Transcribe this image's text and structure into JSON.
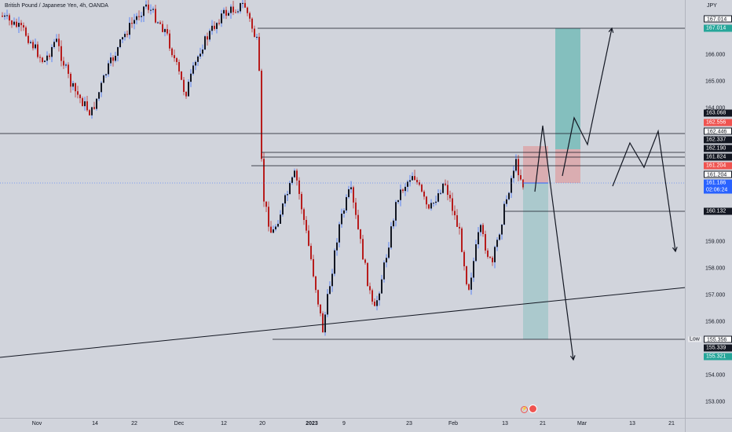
{
  "symbol": {
    "title": "British Pound / Japanese Yen, 4h, OANDA"
  },
  "price_axis": {
    "currency": "JPY",
    "ticks": [
      "166.000",
      "165.000",
      "164.000",
      "159.000",
      "158.000",
      "157.000",
      "156.000",
      "154.000",
      "153.000"
    ]
  },
  "time_axis": {
    "ticks": [
      {
        "label": "Nov",
        "bold": false
      },
      {
        "label": "14",
        "bold": false
      },
      {
        "label": "22",
        "bold": false
      },
      {
        "label": "Dec",
        "bold": false
      },
      {
        "label": "12",
        "bold": false
      },
      {
        "label": "20",
        "bold": false
      },
      {
        "label": "2023",
        "bold": true
      },
      {
        "label": "9",
        "bold": false
      },
      {
        "label": "23",
        "bold": false
      },
      {
        "label": "Feb",
        "bold": false
      },
      {
        "label": "13",
        "bold": false
      },
      {
        "label": "21",
        "bold": false
      },
      {
        "label": "Mar",
        "bold": false
      },
      {
        "label": "13",
        "bold": false
      },
      {
        "label": "21",
        "bold": false
      }
    ]
  },
  "price_tags": [
    {
      "label": "167.014",
      "style": "white"
    },
    {
      "label": "167.014",
      "style": "green"
    },
    {
      "label": "163.068",
      "style": "black"
    },
    {
      "label": "162.556",
      "style": "red"
    },
    {
      "label": "162.446",
      "style": "white"
    },
    {
      "label": "162.337",
      "style": "black"
    },
    {
      "label": "162.190",
      "style": "black"
    },
    {
      "label": "161.824",
      "style": "black"
    },
    {
      "label": "161.204",
      "style": "red"
    },
    {
      "label": "161.204",
      "style": "white"
    },
    {
      "label": "161.186",
      "style": "blue"
    },
    {
      "label": "02:06:24",
      "style": "blue"
    },
    {
      "label": "160.132",
      "style": "black"
    },
    {
      "label": "155.356",
      "style": "white"
    },
    {
      "label": "155.339",
      "style": "black"
    },
    {
      "label": "155.321",
      "style": "green"
    }
  ],
  "low_marker": {
    "label": "Low"
  },
  "colors": {
    "background": "#d1d4dc",
    "candle_up": "#131722",
    "candle_down": "#b71c1c",
    "wick_up": "#2962ff",
    "wick_down": "#b71c1c",
    "long_profit": "#26a69a",
    "long_stop": "#ef5350",
    "annotation_line": "#131722"
  },
  "events": {
    "icons": [
      "lightning-icon",
      "economic-event-icon"
    ]
  }
}
